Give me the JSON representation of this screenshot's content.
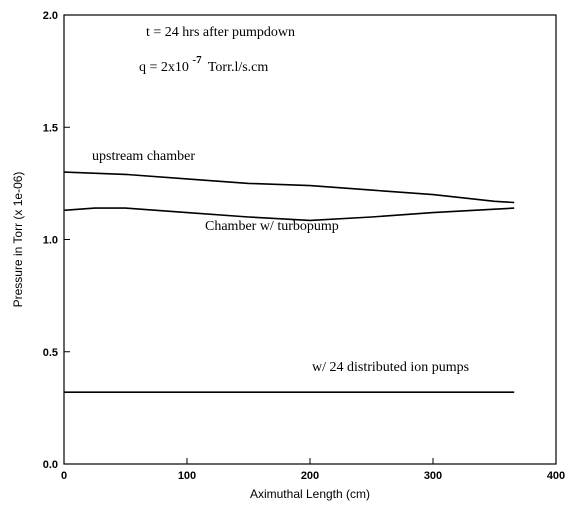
{
  "chart_data": {
    "type": "line",
    "title": "",
    "xlabel": "Aximuthal Length (cm)",
    "ylabel": "Pressure in Torr (x 1e-06)",
    "xlim": [
      0,
      400
    ],
    "ylim": [
      0.0,
      2.0
    ],
    "x_ticks": [
      0,
      100,
      200,
      300,
      400
    ],
    "y_ticks": [
      0.0,
      0.5,
      1.0,
      1.5,
      2.0
    ],
    "x_tick_labels": [
      "0",
      "100",
      "200",
      "300",
      "400"
    ],
    "y_tick_labels": [
      "0.0",
      "0.5",
      "1.0",
      "1.5",
      "2.0"
    ],
    "grid": false,
    "annotations": {
      "time": "t = 24 hrs after pumpdown",
      "q_prefix": "q = 2x10",
      "q_exponent": "-7",
      "q_suffix": "Torr.l/s.cm"
    },
    "series": [
      {
        "name": "upstream chamber",
        "x": [
          0,
          50,
          100,
          150,
          200,
          250,
          300,
          350,
          366
        ],
        "y": [
          1.3,
          1.29,
          1.27,
          1.25,
          1.24,
          1.22,
          1.2,
          1.17,
          1.165
        ]
      },
      {
        "name": "Chamber w/ turbopump",
        "x": [
          0,
          25,
          50,
          100,
          150,
          200,
          250,
          300,
          350,
          366
        ],
        "y": [
          1.13,
          1.14,
          1.14,
          1.12,
          1.1,
          1.085,
          1.1,
          1.12,
          1.135,
          1.14
        ]
      },
      {
        "name": "w/  24 distributed ion pumps",
        "x": [
          0,
          100,
          200,
          300,
          366
        ],
        "y": [
          0.32,
          0.32,
          0.32,
          0.32,
          0.32
        ]
      }
    ]
  }
}
